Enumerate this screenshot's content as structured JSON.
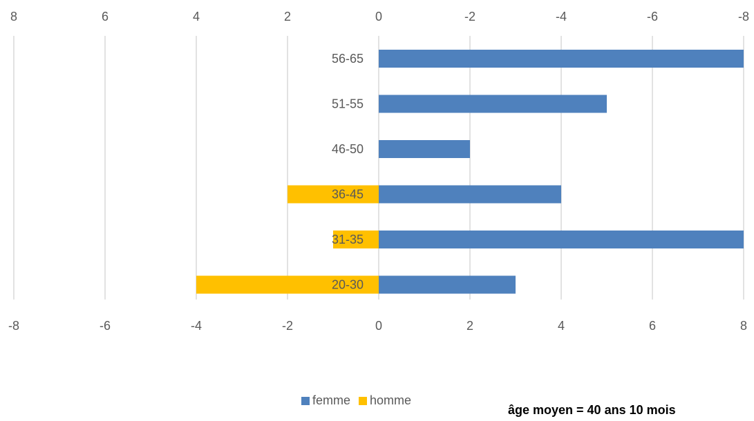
{
  "chart_data": {
    "type": "bar",
    "orientation": "horizontal",
    "categories": [
      "56-65",
      "51-55",
      "46-50",
      "36-45",
      "31-35",
      "20-30"
    ],
    "series": [
      {
        "name": "femme",
        "color": "#4F81BD",
        "values": [
          8,
          5,
          2,
          4,
          8,
          3
        ]
      },
      {
        "name": "homme",
        "color": "#FFC000",
        "values": [
          0,
          0,
          0,
          2,
          1,
          4
        ]
      }
    ],
    "xlim": [
      -8,
      8
    ],
    "bottom_ticks": [
      "-8",
      "-6",
      "-4",
      "-2",
      "0",
      "2",
      "4",
      "6",
      "8"
    ],
    "top_ticks": [
      "8",
      "6",
      "4",
      "2",
      "0",
      "-2",
      "-4",
      "-6",
      "-8"
    ],
    "grid": true,
    "legend_position": "bottom"
  },
  "legend": {
    "femme": "femme",
    "homme": "homme"
  },
  "note": "âge moyen = 40 ans 10 mois"
}
